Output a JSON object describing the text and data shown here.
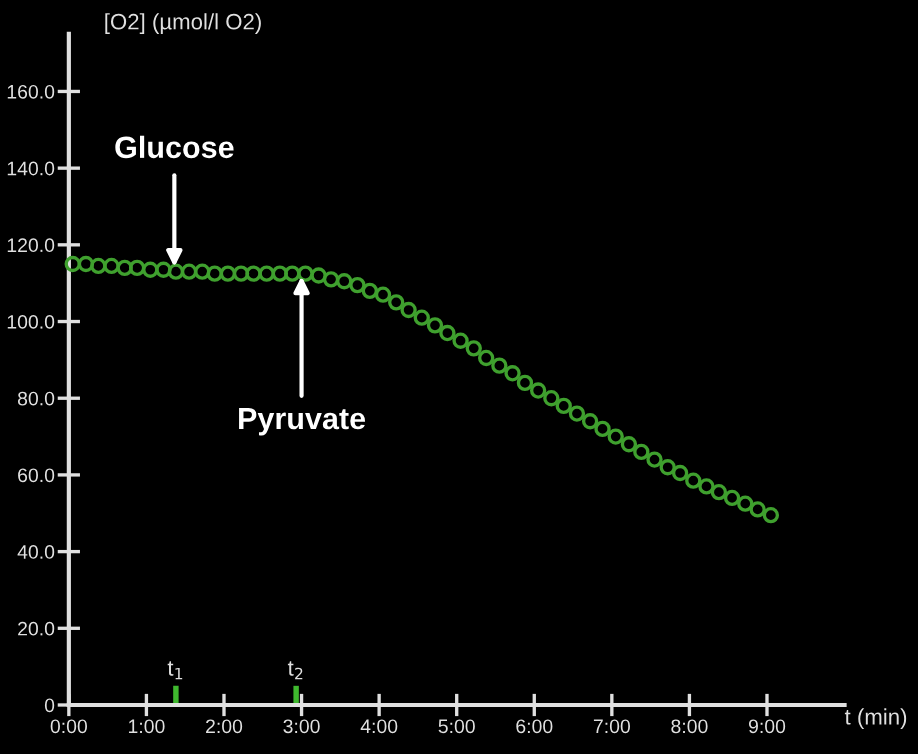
{
  "chart_data": {
    "type": "scatter",
    "ylabel": "[O2] (µmol/l O2)",
    "xlabel": "t (min)",
    "xlim": [
      0,
      10
    ],
    "ylim": [
      0,
      175
    ],
    "xticks": [
      {
        "value": 0,
        "label": "0:00"
      },
      {
        "value": 1,
        "label": "1:00"
      },
      {
        "value": 2,
        "label": "2:00"
      },
      {
        "value": 3,
        "label": "3:00"
      },
      {
        "value": 4,
        "label": "4:00"
      },
      {
        "value": 5,
        "label": "5:00"
      },
      {
        "value": 6,
        "label": "6:00"
      },
      {
        "value": 7,
        "label": "7:00"
      },
      {
        "value": 8,
        "label": "8:00"
      },
      {
        "value": 9,
        "label": "9:00"
      }
    ],
    "yticks": [
      0,
      {
        "value": 20,
        "label": "20.0"
      },
      {
        "value": 40,
        "label": "40.0"
      },
      {
        "value": 60,
        "label": "60.0"
      },
      {
        "value": 80,
        "label": "80.0"
      },
      {
        "value": 100,
        "label": "100.0"
      },
      {
        "value": 120,
        "label": "120.0"
      },
      {
        "value": 140,
        "label": "140.0"
      },
      {
        "value": 160,
        "label": "160.0"
      }
    ],
    "grid": false,
    "marker": "circle",
    "series": [
      {
        "color": "#3fa02e",
        "x": [
          0.05,
          0.22,
          0.38,
          0.55,
          0.72,
          0.88,
          1.05,
          1.22,
          1.38,
          1.55,
          1.72,
          1.88,
          2.05,
          2.22,
          2.38,
          2.55,
          2.72,
          2.88,
          3.05,
          3.22,
          3.38,
          3.55,
          3.72,
          3.88,
          4.05,
          4.22,
          4.38,
          4.55,
          4.72,
          4.88,
          5.05,
          5.22,
          5.38,
          5.55,
          5.72,
          5.88,
          6.05,
          6.22,
          6.38,
          6.55,
          6.72,
          6.88,
          7.05,
          7.22,
          7.38,
          7.55,
          7.72,
          7.88,
          8.05,
          8.22,
          8.38,
          8.55,
          8.72,
          8.88,
          9.05
        ],
        "values": [
          115,
          115,
          114.5,
          114.5,
          114,
          114,
          113.5,
          113.5,
          113,
          113,
          113,
          112.5,
          112.5,
          112.5,
          112.5,
          112.5,
          112.5,
          112.5,
          112.5,
          112,
          111,
          110.5,
          109.5,
          108,
          107,
          105,
          103,
          101,
          99,
          97,
          95,
          93,
          90.5,
          88.5,
          86.5,
          84,
          82,
          80,
          78,
          76,
          74,
          72,
          70,
          68,
          66,
          64,
          62,
          60.5,
          58.5,
          57,
          55.5,
          54,
          52.5,
          51,
          49.5
        ]
      },
      {
        "type": "bar",
        "color": "#3fb82e",
        "x": [
          1.38,
          2.93
        ],
        "values": [
          5,
          5
        ]
      }
    ],
    "annotations": [
      {
        "text": "Glucose",
        "x": 1.36,
        "y": 113.5
      },
      {
        "text": "Pyruvate",
        "x": 3.0,
        "y": 112.5
      },
      {
        "text": "t$_{1}$",
        "x": 1.38,
        "y": 5
      },
      {
        "text": "t$_{2}$",
        "x": 2.93,
        "y": 5
      }
    ]
  }
}
